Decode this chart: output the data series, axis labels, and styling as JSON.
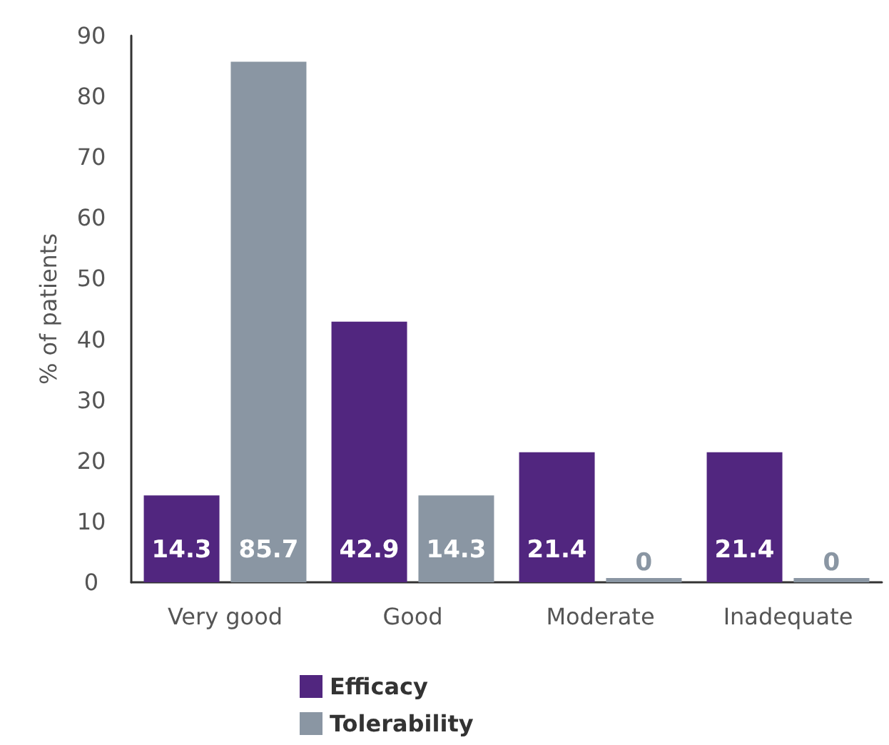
{
  "chart_data": {
    "type": "bar",
    "ylabel": "% of patients",
    "categories": [
      "Very good",
      "Good",
      "Moderate",
      "Inadequate"
    ],
    "series": [
      {
        "name": "Efficacy",
        "color": "#51267f",
        "values": [
          14.3,
          42.9,
          21.4,
          21.4
        ]
      },
      {
        "name": "Tolerability",
        "color": "#8a96a3",
        "values": [
          85.7,
          14.3,
          0,
          0
        ]
      }
    ],
    "ylim": [
      0,
      90
    ],
    "yticks": [
      0,
      10,
      20,
      30,
      40,
      50,
      60,
      70,
      80,
      90
    ],
    "grid": false,
    "legend": "bottom",
    "data_labels": true
  }
}
